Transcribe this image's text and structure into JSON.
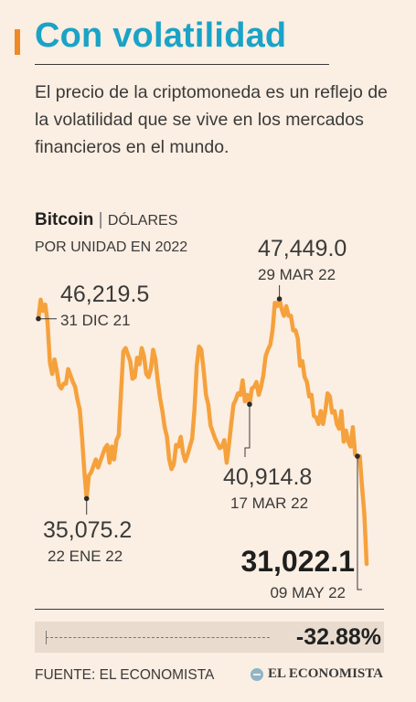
{
  "header": {
    "title": "Con volatilidad",
    "subtitle": "El precio de la criptomoneda es un reflejo de la volatilidad que se vive en los mercados financieros en el mundo."
  },
  "chart_title": {
    "name": "Bitcoin",
    "separator": "|",
    "unit": "DÓLARES",
    "subunit": "POR UNIDAD EN 2022"
  },
  "change": {
    "value": "-32.88%"
  },
  "footer": {
    "source": "FUENTE: EL ECONOMISTA",
    "brand": "EL ECONOMISTA"
  },
  "colors": {
    "accent": "#f08a24",
    "title": "#1aa3c7",
    "line": "#f5a13c",
    "background": "#fbeee2"
  },
  "chart_data": {
    "type": "line",
    "title": "Bitcoin",
    "ylabel": "DÓLARES POR UNIDAD EN 2022",
    "ylim": [
      30500,
      48000
    ],
    "grid": false,
    "series": [
      {
        "values": [
          46219.5,
          47400,
          46700,
          47100,
          46000,
          43500,
          42800,
          43700,
          43000,
          42100,
          41900,
          42200,
          42200,
          43100,
          42700,
          42300,
          42000,
          41200,
          40600,
          38900,
          36800,
          35075.2,
          36500,
          36700,
          37100,
          37500,
          37000,
          37400,
          37800,
          38200,
          38400,
          37300,
          38300,
          37500,
          38700,
          39000,
          41700,
          44200,
          44400,
          44000,
          43600,
          42500,
          42600,
          43800,
          43400,
          44400,
          43900,
          42800,
          42600,
          43100,
          44300,
          43700,
          42400,
          41300,
          40500,
          39500,
          38900,
          37500,
          36900,
          37200,
          38400,
          38300,
          38900,
          37900,
          37400,
          37800,
          38300,
          38800,
          40600,
          43300,
          44500,
          44300,
          43000,
          41500,
          40900,
          39600,
          39200,
          38800,
          38500,
          38200,
          38300,
          38700,
          37300,
          38400,
          39700,
          40900,
          41200,
          41600,
          41500,
          42400,
          41100,
          41500,
          40914.8,
          41900,
          42000,
          42300,
          41500,
          42000,
          42700,
          43900,
          44300,
          44600,
          45500,
          47200,
          47000,
          47449.0,
          46800,
          46400,
          47000,
          46400,
          46400,
          45500,
          45500,
          45000,
          43300,
          43600,
          42600,
          42300,
          41400,
          41500,
          40200,
          40100,
          39700,
          40500,
          39700,
          40500,
          41600,
          41400,
          40400,
          40500,
          39700,
          39400,
          40500,
          38600,
          39300,
          38600,
          38300,
          39500,
          37800,
          37700,
          37700,
          35800,
          34100,
          31022.1
        ]
      }
    ],
    "annotations": [
      {
        "value": "46,219.5",
        "date": "31 DIC 21"
      },
      {
        "value": "35,075.2",
        "date": "22 ENE 22"
      },
      {
        "value": "40,914.8",
        "date": "17 MAR 22"
      },
      {
        "value": "47,449.0",
        "date": "29 MAR 22"
      },
      {
        "value": "31,022.1",
        "date": "09 MAY 22"
      }
    ]
  }
}
